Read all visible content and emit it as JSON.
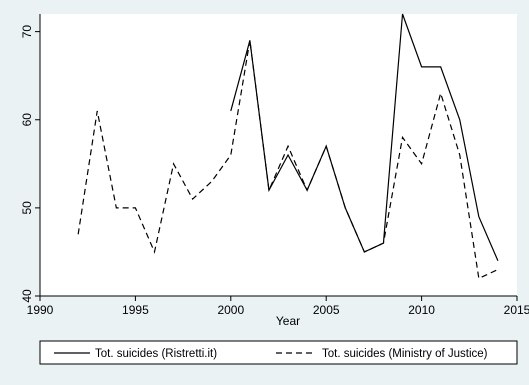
{
  "chart_data": {
    "type": "line",
    "title": "",
    "xlabel": "Year",
    "ylabel": "",
    "xlim": [
      1990,
      2015
    ],
    "ylim": [
      40,
      72
    ],
    "xticks": [
      1990,
      1995,
      2000,
      2005,
      2010,
      2015
    ],
    "yticks": [
      40,
      50,
      60,
      70
    ],
    "grid": false,
    "legend_position": "bottom",
    "series": [
      {
        "name": "Tot. suicides (Ristretti.it)",
        "style": "solid",
        "color": "#000000",
        "x": [
          2000,
          2001,
          2002,
          2003,
          2004,
          2005,
          2006,
          2007,
          2008,
          2009,
          2010,
          2011,
          2012,
          2013,
          2014
        ],
        "values": [
          61,
          69,
          52,
          56,
          52,
          57,
          50,
          45,
          46,
          72,
          66,
          66,
          60,
          49,
          44
        ]
      },
      {
        "name": "Tot. suicides (Ministry of Justice)",
        "style": "dashed",
        "color": "#000000",
        "x": [
          1992,
          1993,
          1994,
          1995,
          1996,
          1997,
          1998,
          1999,
          2000,
          2001,
          2002,
          2003,
          2004,
          2005,
          2006,
          2007,
          2008,
          2009,
          2010,
          2011,
          2012,
          2013,
          2014
        ],
        "values": [
          47,
          61,
          50,
          50,
          45,
          55,
          51,
          53,
          56,
          69,
          52,
          57,
          52,
          57,
          50,
          45,
          46,
          58,
          55,
          63,
          56,
          42,
          43
        ]
      }
    ]
  },
  "colors": {
    "background": "#eaf2f3",
    "plot_background": "#ffffff",
    "line": "#000000"
  }
}
